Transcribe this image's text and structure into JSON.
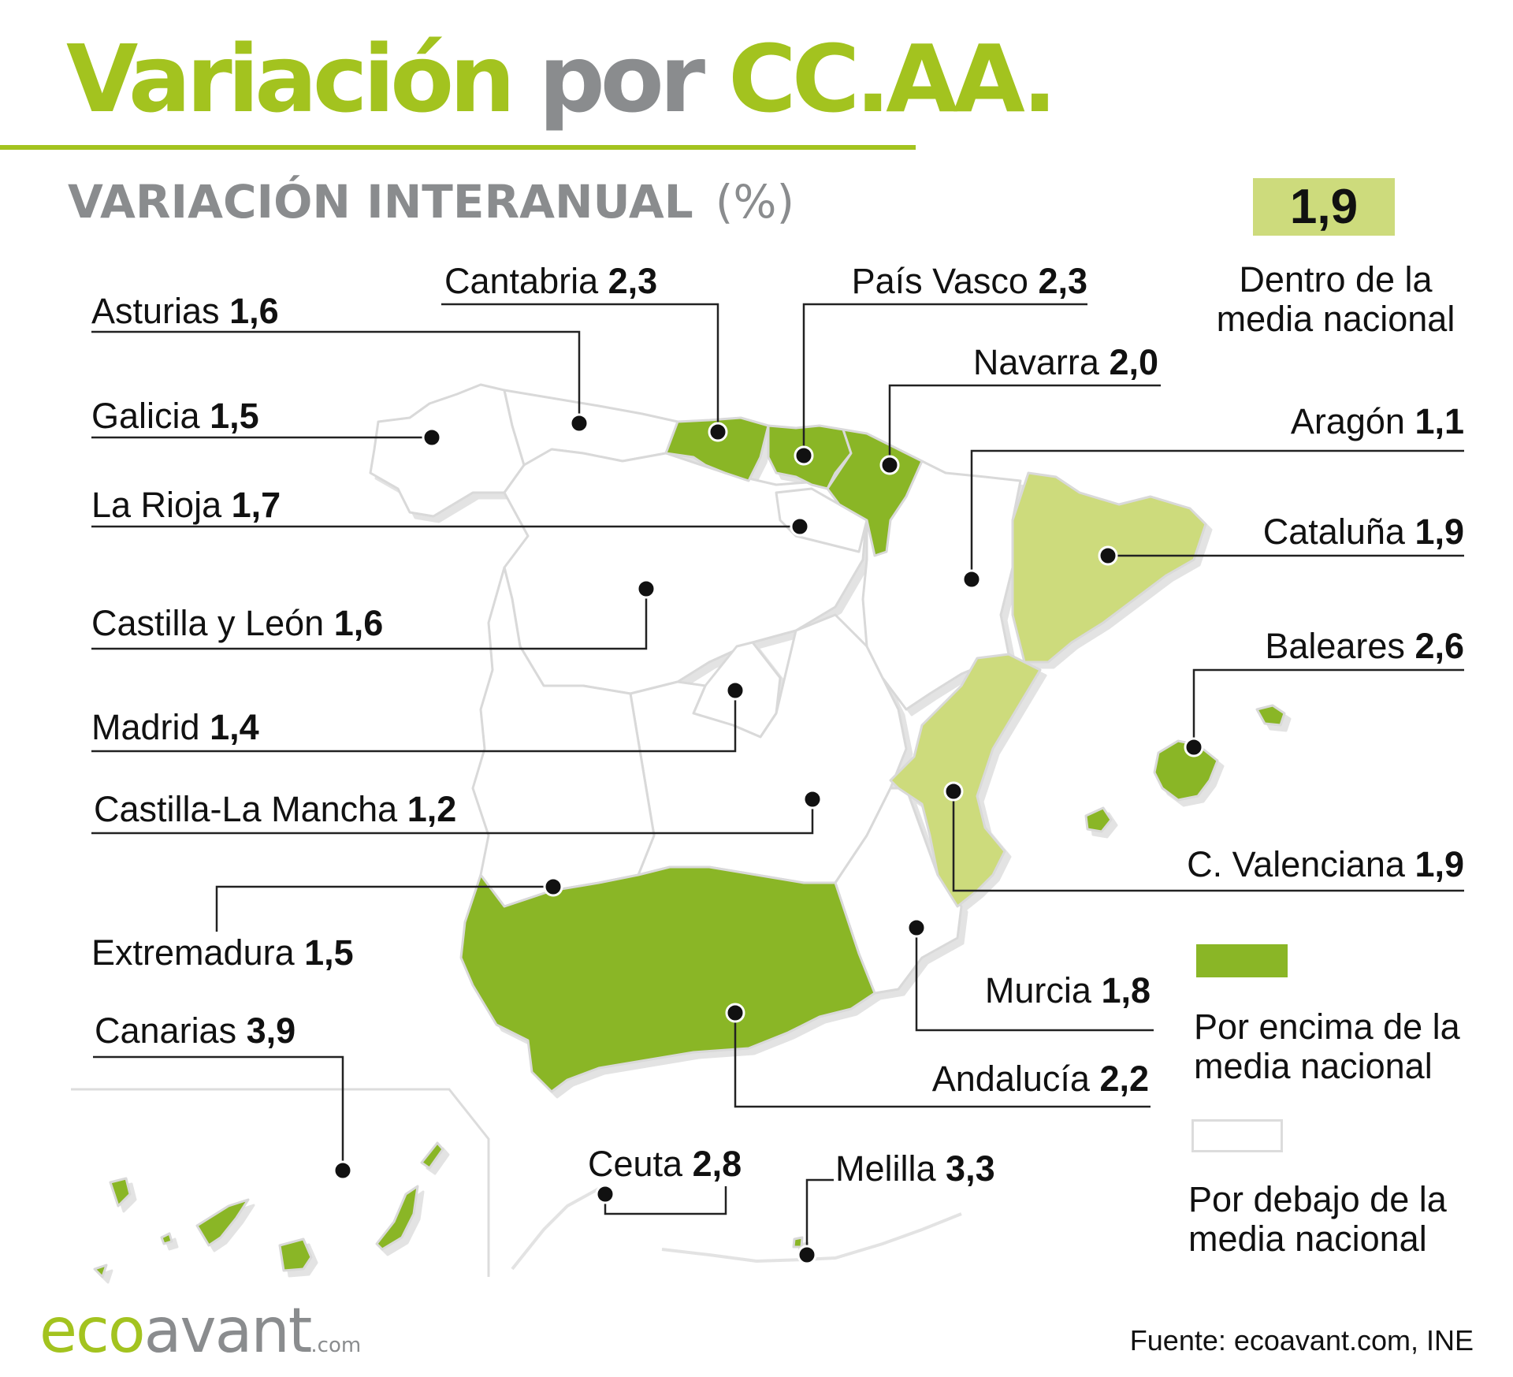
{
  "title": {
    "part1": "Variación",
    "part2": "por",
    "part3": "CC.AA."
  },
  "subtitle": {
    "label": "VARIACIÓN INTERANUAL",
    "unit": "(%)"
  },
  "national_average": "1,9",
  "legend": {
    "within": "Dentro de la media nacional",
    "above": "Por encima de la media nacional",
    "below": "Por debajo de la media nacional"
  },
  "colors": {
    "above": "#8ab626",
    "within": "#cddb7c",
    "below": "#ffffff",
    "border": "#d9d9d9",
    "accent": "#a3c31f",
    "gray": "#8a8c8e"
  },
  "regions": [
    {
      "name": "Asturias",
      "value": "1,6",
      "category": "below"
    },
    {
      "name": "Cantabria",
      "value": "2,3",
      "category": "above"
    },
    {
      "name": "País Vasco",
      "value": "2,3",
      "category": "above"
    },
    {
      "name": "Navarra",
      "value": "2,0",
      "category": "above"
    },
    {
      "name": "Galicia",
      "value": "1,5",
      "category": "below"
    },
    {
      "name": "Aragón",
      "value": "1,1",
      "category": "below"
    },
    {
      "name": "La Rioja",
      "value": "1,7",
      "category": "below"
    },
    {
      "name": "Cataluña",
      "value": "1,9",
      "category": "within"
    },
    {
      "name": "Castilla y León",
      "value": "1,6",
      "category": "below"
    },
    {
      "name": "Baleares",
      "value": "2,6",
      "category": "above"
    },
    {
      "name": "Madrid",
      "value": "1,4",
      "category": "below"
    },
    {
      "name": "Castilla-La Mancha",
      "value": "1,2",
      "category": "below"
    },
    {
      "name": "C. Valenciana",
      "value": "1,9",
      "category": "within"
    },
    {
      "name": "Extremadura",
      "value": "1,5",
      "category": "below"
    },
    {
      "name": "Murcia",
      "value": "1,8",
      "category": "below"
    },
    {
      "name": "Canarias",
      "value": "3,9",
      "category": "above"
    },
    {
      "name": "Andalucía",
      "value": "2,2",
      "category": "above"
    },
    {
      "name": "Ceuta",
      "value": "2,8",
      "category": "above"
    },
    {
      "name": "Melilla",
      "value": "3,3",
      "category": "above"
    }
  ],
  "source": "Fuente: ecoavant.com, INE",
  "logo": {
    "part1": "eco",
    "part2": "avant",
    "suffix": ".com"
  }
}
